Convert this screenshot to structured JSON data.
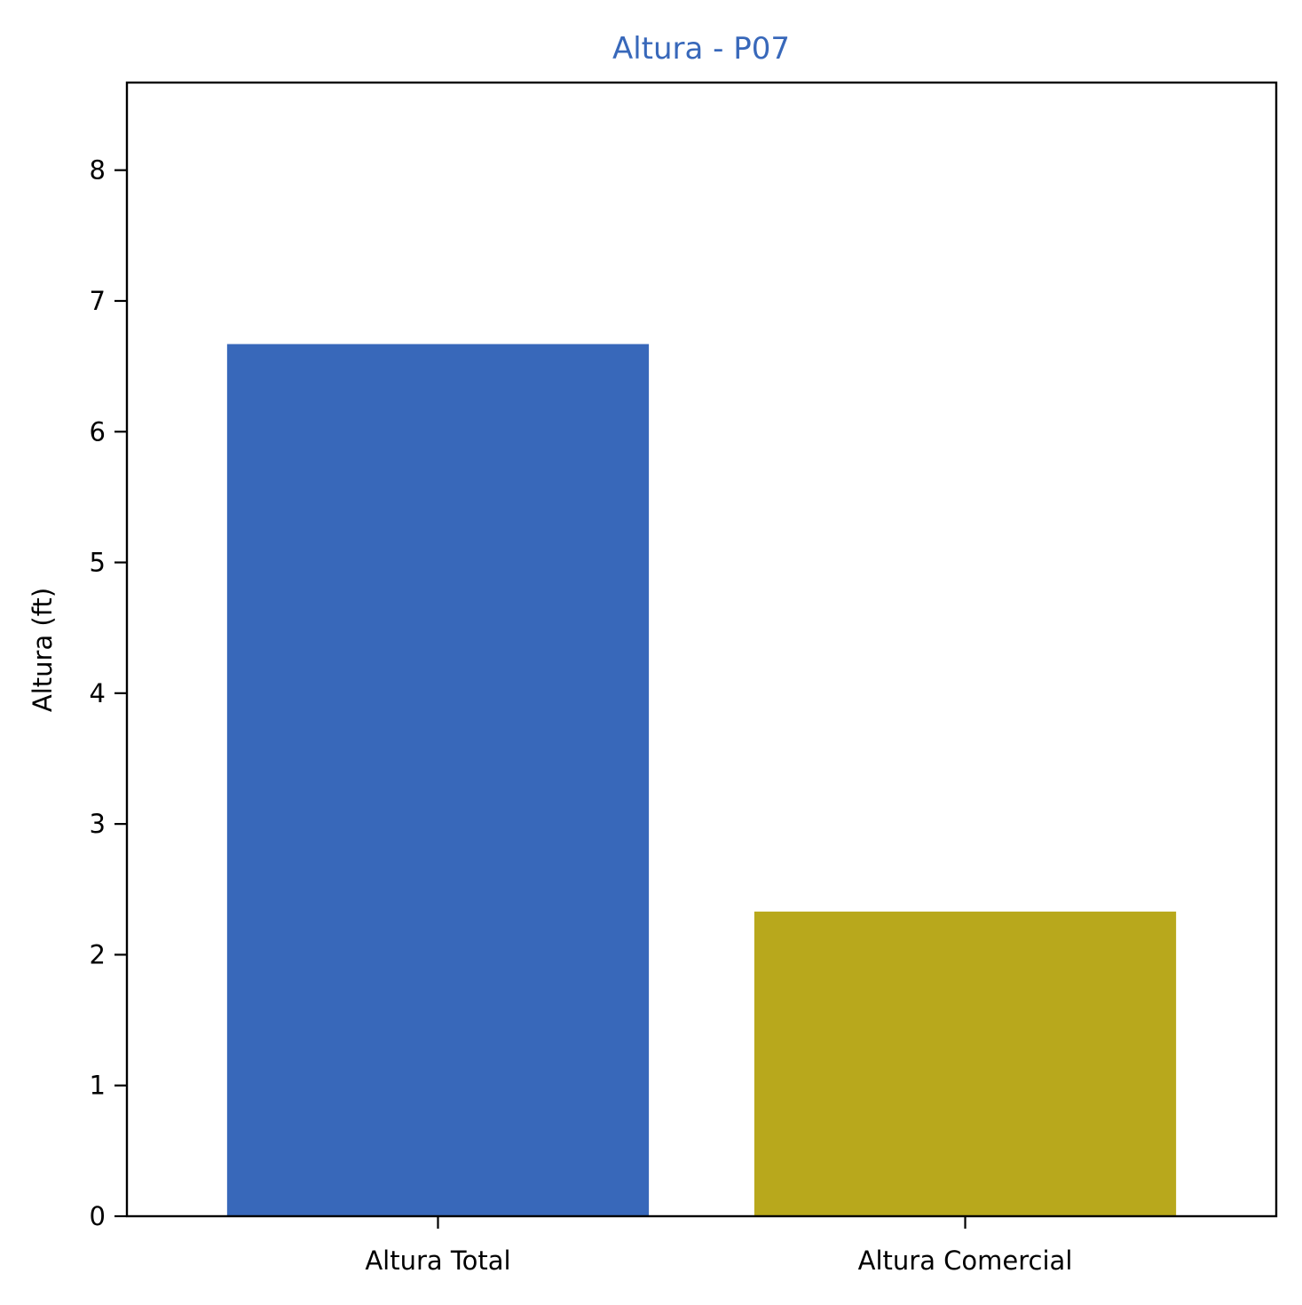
{
  "chart_data": {
    "type": "bar",
    "title": "Altura - P07",
    "xlabel": "",
    "ylabel": "Altura (ft)",
    "categories": [
      "Altura Total",
      "Altura Comercial"
    ],
    "values": [
      6.67,
      2.33
    ],
    "bar_colors": [
      "#3868ba",
      "#b8a81c"
    ],
    "title_color": "#3868ba",
    "ylim": [
      0,
      8.67
    ],
    "yticks": [
      0,
      1,
      2,
      3,
      4,
      5,
      6,
      7,
      8
    ],
    "grid": false,
    "legend": "none"
  }
}
